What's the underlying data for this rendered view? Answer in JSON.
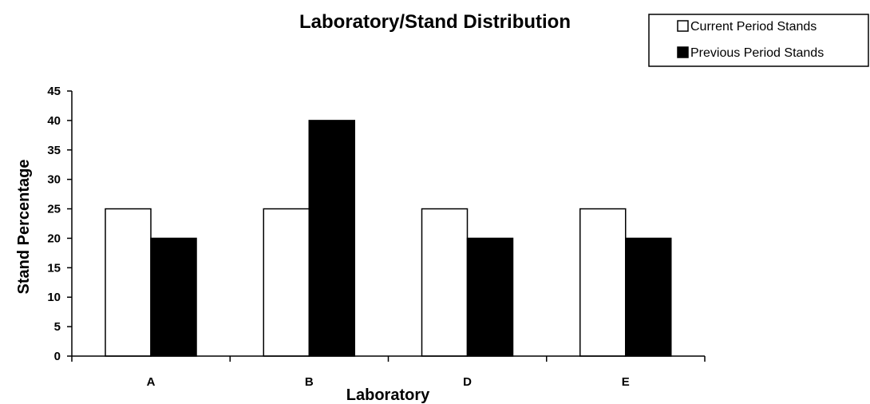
{
  "chart_data": {
    "type": "bar",
    "title": "Laboratory/Stand Distribution",
    "xlabel": "Laboratory",
    "ylabel": "Stand Percentage",
    "categories": [
      "A",
      "B",
      "D",
      "E"
    ],
    "series": [
      {
        "name": "Current Period Stands",
        "values": [
          25,
          25,
          25,
          25
        ],
        "color": "#ffffff"
      },
      {
        "name": "Previous Period Stands",
        "values": [
          20,
          40,
          20,
          20
        ],
        "color": "#000000"
      }
    ],
    "ylim": [
      0,
      45
    ],
    "yticks": [
      0,
      5,
      10,
      15,
      20,
      25,
      30,
      35,
      40,
      45
    ],
    "grid": false,
    "legend_position": "top-right"
  }
}
